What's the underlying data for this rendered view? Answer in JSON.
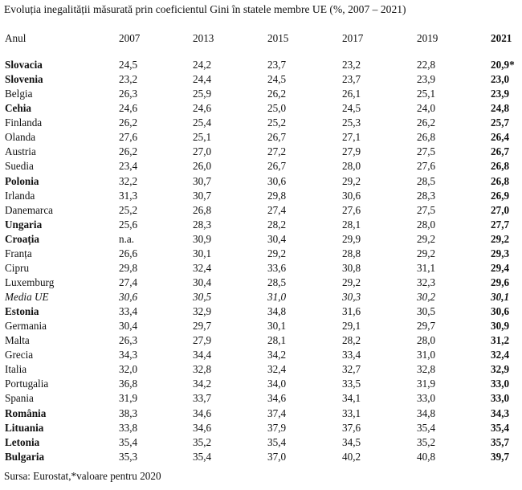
{
  "title": "Evoluția inegalității măsurată prin coeficientul Gini în statele membre UE (%, 2007 – 2021)",
  "columns": [
    "Anul",
    "2007",
    "2013",
    "2015",
    "2017",
    "2019",
    "2021"
  ],
  "rows": [
    {
      "country": "Slovacia",
      "bold": true,
      "italic": false,
      "values": [
        "24,5",
        "24,2",
        "23,7",
        "23,2",
        "22,8",
        "20,9*"
      ]
    },
    {
      "country": "Slovenia",
      "bold": true,
      "italic": false,
      "values": [
        "23,2",
        "24,4",
        "24,5",
        "23,7",
        "23,9",
        "23,0"
      ]
    },
    {
      "country": "Belgia",
      "bold": false,
      "italic": false,
      "values": [
        "26,3",
        "25,9",
        "26,2",
        "26,1",
        "25,1",
        "23,9"
      ]
    },
    {
      "country": "Cehia",
      "bold": true,
      "italic": false,
      "values": [
        "24,6",
        "24,6",
        "25,0",
        "24,5",
        "24,0",
        "24,8"
      ]
    },
    {
      "country": "Finlanda",
      "bold": false,
      "italic": false,
      "values": [
        "26,2",
        "25,4",
        "25,2",
        "25,3",
        "26,2",
        "25,7"
      ]
    },
    {
      "country": "Olanda",
      "bold": false,
      "italic": false,
      "values": [
        "27,6",
        "25,1",
        "26,7",
        "27,1",
        "26,8",
        "26,4"
      ]
    },
    {
      "country": "Austria",
      "bold": false,
      "italic": false,
      "values": [
        "26,2",
        "27,0",
        "27,2",
        "27,9",
        "27,5",
        "26,7"
      ]
    },
    {
      "country": "Suedia",
      "bold": false,
      "italic": false,
      "values": [
        "23,4",
        "26,0",
        "26,7",
        "28,0",
        "27,6",
        "26,8"
      ]
    },
    {
      "country": "Polonia",
      "bold": true,
      "italic": false,
      "values": [
        "32,2",
        "30,7",
        "30,6",
        "29,2",
        "28,5",
        "26,8"
      ]
    },
    {
      "country": "Irlanda",
      "bold": false,
      "italic": false,
      "values": [
        "31,3",
        "30,7",
        "29,8",
        "30,6",
        "28,3",
        "26,9"
      ]
    },
    {
      "country": "Danemarca",
      "bold": false,
      "italic": false,
      "values": [
        "25,2",
        "26,8",
        "27,4",
        "27,6",
        "27,5",
        "27,0"
      ]
    },
    {
      "country": "Ungaria",
      "bold": true,
      "italic": false,
      "values": [
        "25,6",
        "28,3",
        "28,2",
        "28,1",
        "28,0",
        "27,7"
      ]
    },
    {
      "country": "Croația",
      "bold": true,
      "italic": false,
      "values": [
        "n.a.",
        "30,9",
        "30,4",
        "29,9",
        "29,2",
        "29,2"
      ]
    },
    {
      "country": "Franța",
      "bold": false,
      "italic": false,
      "values": [
        "26,6",
        "30,1",
        "29,2",
        "28,8",
        "29,2",
        "29,3"
      ]
    },
    {
      "country": "Cipru",
      "bold": false,
      "italic": false,
      "values": [
        "29,8",
        "32,4",
        "33,6",
        "30,8",
        "31,1",
        "29,4"
      ]
    },
    {
      "country": "Luxemburg",
      "bold": false,
      "italic": false,
      "values": [
        "27,4",
        "30,4",
        "28,5",
        "29,2",
        "32,3",
        "29,6"
      ]
    },
    {
      "country": "Media UE",
      "bold": false,
      "italic": true,
      "values": [
        "30,6",
        "30,5",
        "31,0",
        "30,3",
        "30,2",
        "30,1"
      ]
    },
    {
      "country": "Estonia",
      "bold": true,
      "italic": false,
      "values": [
        "33,4",
        "32,9",
        "34,8",
        "31,6",
        "30,5",
        "30,6"
      ]
    },
    {
      "country": "Germania",
      "bold": false,
      "italic": false,
      "values": [
        "30,4",
        "29,7",
        "30,1",
        "29,1",
        "29,7",
        "30,9"
      ]
    },
    {
      "country": "Malta",
      "bold": false,
      "italic": false,
      "values": [
        "26,3",
        "27,9",
        "28,1",
        "28,2",
        "28,0",
        "31,2"
      ]
    },
    {
      "country": "Grecia",
      "bold": false,
      "italic": false,
      "values": [
        "34,3",
        "34,4",
        "34,2",
        "33,4",
        "31,0",
        "32,4"
      ]
    },
    {
      "country": "Italia",
      "bold": false,
      "italic": false,
      "values": [
        "32,0",
        "32,8",
        "32,4",
        "32,7",
        "32,8",
        "32,9"
      ]
    },
    {
      "country": "Portugalia",
      "bold": false,
      "italic": false,
      "values": [
        "36,8",
        "34,2",
        "34,0",
        "33,5",
        "31,9",
        "33,0"
      ]
    },
    {
      "country": "Spania",
      "bold": false,
      "italic": false,
      "values": [
        "31,9",
        "33,7",
        "34,6",
        "34,1",
        "33,0",
        "33,0"
      ]
    },
    {
      "country": "România",
      "bold": true,
      "italic": false,
      "values": [
        "38,3",
        "34,6",
        "37,4",
        "33,1",
        "34,8",
        "34,3"
      ]
    },
    {
      "country": "Lituania",
      "bold": true,
      "italic": false,
      "values": [
        "33,8",
        "34,6",
        "37,9",
        "37,6",
        "35,4",
        "35,4"
      ]
    },
    {
      "country": "Letonia",
      "bold": true,
      "italic": false,
      "values": [
        "35,4",
        "35,2",
        "35,4",
        "34,5",
        "35,2",
        "35,7"
      ]
    },
    {
      "country": "Bulgaria",
      "bold": true,
      "italic": false,
      "values": [
        "35,3",
        "35,4",
        "37,0",
        "40,2",
        "40,8",
        "39,7"
      ]
    }
  ],
  "source": "Sursa: Eurostat,*valoare pentru 2020"
}
